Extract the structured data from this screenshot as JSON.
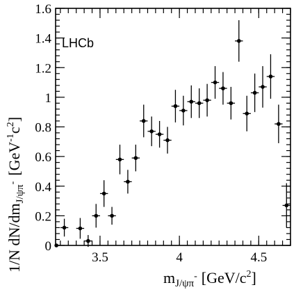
{
  "chart_data": {
    "type": "scatter",
    "annotation": "LHCb",
    "xlabel": {
      "main": "m",
      "sub": "J/ψπ",
      "sup": "-",
      "units": "[GeV/c",
      "units_sup": "2",
      "units_close": "]"
    },
    "ylabel": {
      "main": "1/N dN/dm",
      "sub": "J/ψπ",
      "sup": "-",
      "units": "[GeV",
      "units_sup1": "-1",
      "units_mid": "c",
      "units_sup2": "2",
      "units_close": "]"
    },
    "xlim": [
      3.22,
      4.7
    ],
    "ylim": [
      0,
      1.6
    ],
    "x_ticks": [
      3.5,
      4,
      4.5
    ],
    "x_tick_labels": [
      "3.5",
      "4",
      "4.5"
    ],
    "y_ticks": [
      0,
      0.2,
      0.4,
      0.6,
      0.8,
      1,
      1.2,
      1.4,
      1.6
    ],
    "y_tick_labels": [
      "0",
      "0.2",
      "0.4",
      "0.6",
      "0.8",
      "1",
      "1.2",
      "1.4",
      "1.6"
    ],
    "x_bin_halfwidth": 0.025,
    "points": [
      {
        "x": 3.225,
        "y": 0.0,
        "err": 0.0
      },
      {
        "x": 3.275,
        "y": 0.12,
        "err": 0.06
      },
      {
        "x": 3.375,
        "y": 0.115,
        "err": 0.07
      },
      {
        "x": 3.425,
        "y": 0.03,
        "err": 0.04
      },
      {
        "x": 3.475,
        "y": 0.2,
        "err": 0.08
      },
      {
        "x": 3.525,
        "y": 0.35,
        "err": 0.09
      },
      {
        "x": 3.575,
        "y": 0.2,
        "err": 0.06
      },
      {
        "x": 3.625,
        "y": 0.58,
        "err": 0.1
      },
      {
        "x": 3.675,
        "y": 0.43,
        "err": 0.08
      },
      {
        "x": 3.725,
        "y": 0.59,
        "err": 0.09
      },
      {
        "x": 3.775,
        "y": 0.84,
        "err": 0.11
      },
      {
        "x": 3.825,
        "y": 0.77,
        "err": 0.1
      },
      {
        "x": 3.875,
        "y": 0.75,
        "err": 0.09
      },
      {
        "x": 3.925,
        "y": 0.71,
        "err": 0.09
      },
      {
        "x": 3.975,
        "y": 0.94,
        "err": 0.11
      },
      {
        "x": 4.025,
        "y": 0.91,
        "err": 0.1
      },
      {
        "x": 4.075,
        "y": 0.97,
        "err": 0.11
      },
      {
        "x": 4.125,
        "y": 0.96,
        "err": 0.1
      },
      {
        "x": 4.175,
        "y": 0.98,
        "err": 0.11
      },
      {
        "x": 4.225,
        "y": 1.1,
        "err": 0.11
      },
      {
        "x": 4.275,
        "y": 1.06,
        "err": 0.11
      },
      {
        "x": 4.325,
        "y": 0.96,
        "err": 0.11
      },
      {
        "x": 4.375,
        "y": 1.38,
        "err": 0.14
      },
      {
        "x": 4.425,
        "y": 0.89,
        "err": 0.12
      },
      {
        "x": 4.475,
        "y": 1.03,
        "err": 0.13
      },
      {
        "x": 4.525,
        "y": 1.07,
        "err": 0.14
      },
      {
        "x": 4.575,
        "y": 1.14,
        "err": 0.15
      },
      {
        "x": 4.625,
        "y": 0.82,
        "err": 0.13
      },
      {
        "x": 4.675,
        "y": 0.27,
        "err": 0.15
      }
    ]
  }
}
